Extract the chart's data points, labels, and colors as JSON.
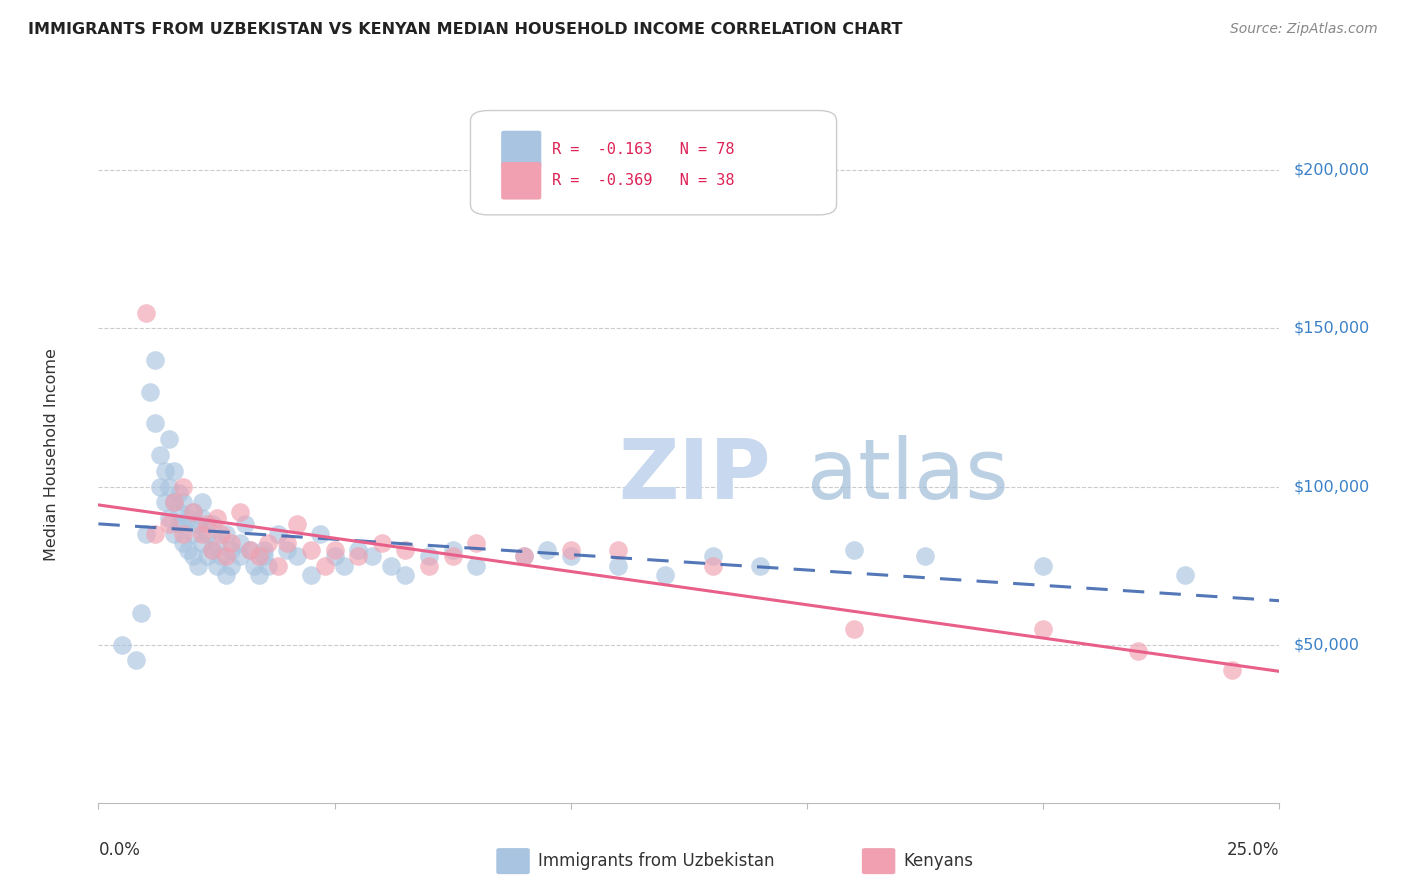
{
  "title": "IMMIGRANTS FROM UZBEKISTAN VS KENYAN MEDIAN HOUSEHOLD INCOME CORRELATION CHART",
  "source": "Source: ZipAtlas.com",
  "ylabel": "Median Household Income",
  "ytick_labels": [
    "$50,000",
    "$100,000",
    "$150,000",
    "$200,000"
  ],
  "ytick_values": [
    50000,
    100000,
    150000,
    200000
  ],
  "ymin": 0,
  "ymax": 220000,
  "xmin": 0.0,
  "xmax": 0.25,
  "blue_color": "#a8c4e0",
  "pink_color": "#f0a0b0",
  "blue_line_color": "#4169b0",
  "pink_line_color": "#e8608a",
  "watermark_zip": "ZIP",
  "watermark_atlas": "atlas",
  "blue_scatter_x": [
    0.005,
    0.008,
    0.009,
    0.01,
    0.011,
    0.012,
    0.012,
    0.013,
    0.013,
    0.014,
    0.014,
    0.015,
    0.015,
    0.015,
    0.016,
    0.016,
    0.016,
    0.017,
    0.017,
    0.017,
    0.018,
    0.018,
    0.018,
    0.019,
    0.019,
    0.02,
    0.02,
    0.02,
    0.021,
    0.021,
    0.022,
    0.022,
    0.022,
    0.023,
    0.023,
    0.024,
    0.024,
    0.025,
    0.025,
    0.026,
    0.027,
    0.027,
    0.028,
    0.028,
    0.03,
    0.03,
    0.031,
    0.032,
    0.033,
    0.034,
    0.035,
    0.035,
    0.036,
    0.038,
    0.04,
    0.042,
    0.045,
    0.047,
    0.05,
    0.052,
    0.055,
    0.058,
    0.062,
    0.065,
    0.07,
    0.075,
    0.08,
    0.09,
    0.095,
    0.1,
    0.11,
    0.12,
    0.13,
    0.14,
    0.16,
    0.175,
    0.2,
    0.23
  ],
  "blue_scatter_y": [
    50000,
    45000,
    60000,
    85000,
    130000,
    120000,
    140000,
    100000,
    110000,
    95000,
    105000,
    90000,
    100000,
    115000,
    85000,
    95000,
    105000,
    88000,
    92000,
    98000,
    82000,
    88000,
    95000,
    80000,
    90000,
    85000,
    92000,
    78000,
    88000,
    75000,
    82000,
    90000,
    95000,
    78000,
    85000,
    80000,
    88000,
    75000,
    82000,
    78000,
    85000,
    72000,
    80000,
    75000,
    82000,
    78000,
    88000,
    80000,
    75000,
    72000,
    78000,
    80000,
    75000,
    85000,
    80000,
    78000,
    72000,
    85000,
    78000,
    75000,
    80000,
    78000,
    75000,
    72000,
    78000,
    80000,
    75000,
    78000,
    80000,
    78000,
    75000,
    72000,
    78000,
    75000,
    80000,
    78000,
    75000,
    72000
  ],
  "pink_scatter_x": [
    0.01,
    0.012,
    0.015,
    0.016,
    0.018,
    0.018,
    0.02,
    0.022,
    0.023,
    0.024,
    0.025,
    0.026,
    0.027,
    0.028,
    0.03,
    0.032,
    0.034,
    0.036,
    0.038,
    0.04,
    0.042,
    0.045,
    0.048,
    0.05,
    0.055,
    0.06,
    0.065,
    0.07,
    0.075,
    0.08,
    0.09,
    0.1,
    0.11,
    0.13,
    0.16,
    0.2,
    0.22,
    0.24
  ],
  "pink_scatter_y": [
    155000,
    85000,
    88000,
    95000,
    100000,
    85000,
    92000,
    85000,
    88000,
    80000,
    90000,
    85000,
    78000,
    82000,
    92000,
    80000,
    78000,
    82000,
    75000,
    82000,
    88000,
    80000,
    75000,
    80000,
    78000,
    82000,
    80000,
    75000,
    78000,
    82000,
    78000,
    80000,
    80000,
    75000,
    55000,
    55000,
    48000,
    42000
  ]
}
